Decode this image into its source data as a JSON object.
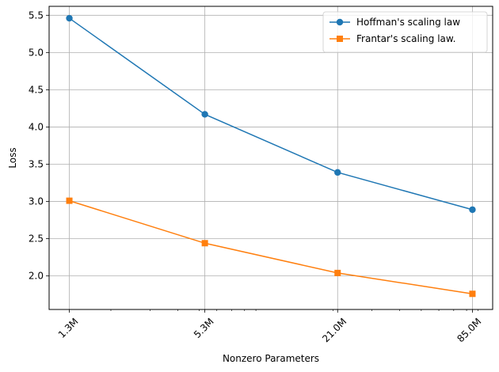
{
  "chart_data": {
    "type": "line",
    "title": "",
    "xlabel": "Nonzero Parameters",
    "ylabel": "Loss",
    "x_scale": "log",
    "x": [
      1300000,
      5300000,
      21000000,
      85000000
    ],
    "x_tick_labels": [
      "1.3M",
      "5.3M",
      "21.0M",
      "85.0M"
    ],
    "ylim": [
      1.55,
      5.62
    ],
    "y_ticks": [
      2.0,
      2.5,
      3.0,
      3.5,
      4.0,
      4.5,
      5.0,
      5.5
    ],
    "y_tick_labels": [
      "2.0",
      "2.5",
      "3.0",
      "3.5",
      "4.0",
      "4.5",
      "5.0",
      "5.5"
    ],
    "grid": true,
    "legend_position": "top-right",
    "series": [
      {
        "name": "Hoffman's scaling law",
        "values": [
          5.46,
          4.17,
          3.39,
          2.89
        ],
        "color": "#1f77b4",
        "marker": "circle"
      },
      {
        "name": "Frantar's scaling law.",
        "values": [
          3.01,
          2.44,
          2.04,
          1.76
        ],
        "color": "#ff7f0e",
        "marker": "square"
      }
    ]
  }
}
